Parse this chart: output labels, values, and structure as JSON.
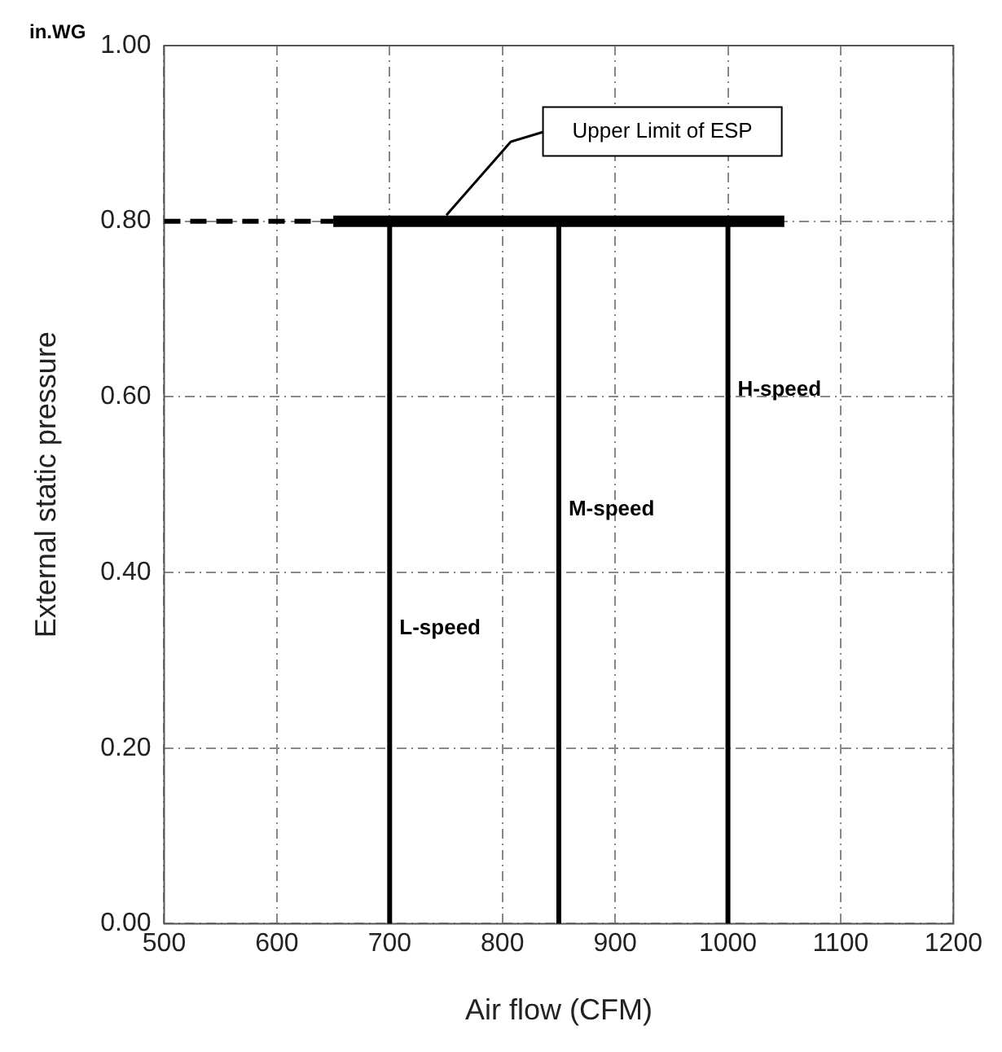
{
  "chart_data": {
    "type": "line",
    "xlabel": "Air flow (CFM)",
    "ylabel": "External static pressure",
    "xlim": [
      500,
      1200
    ],
    "xticks": [
      500,
      600,
      700,
      800,
      900,
      1000,
      1100,
      1200
    ],
    "ylim": [
      0,
      1
    ],
    "yticks": [
      {
        "value": 0,
        "label": "0.00"
      },
      {
        "value": 0.2,
        "label": "0.20"
      },
      {
        "value": 0.4,
        "label": "0.40"
      },
      {
        "value": 0.6,
        "label": "0.60"
      },
      {
        "value": 0.8,
        "label": "0.80"
      },
      {
        "value": 1,
        "label": "1.00"
      }
    ],
    "grid": true,
    "legend": false,
    "marker": "none",
    "series": [
      {
        "name": "L-speed",
        "color": "#000000",
        "x": [
          700,
          700
        ],
        "values": [
          0,
          0.8
        ]
      },
      {
        "name": "M-speed",
        "color": "#000000",
        "x": [
          850,
          850
        ],
        "values": [
          0,
          0.8
        ]
      },
      {
        "name": "H-speed",
        "color": "#000000",
        "x": [
          1000,
          1000
        ],
        "values": [
          0,
          0.8
        ]
      },
      {
        "color": "#000000",
        "x": [
          650,
          1050
        ],
        "values": [
          0.8,
          0.8
        ]
      },
      {
        "color": "#000000",
        "x": [
          500,
          650
        ],
        "values": [
          0.8,
          0.8
        ],
        "line_style": "dashed"
      }
    ],
    "annotations": [
      "in.WG",
      "Upper Limit of ESP"
    ]
  }
}
